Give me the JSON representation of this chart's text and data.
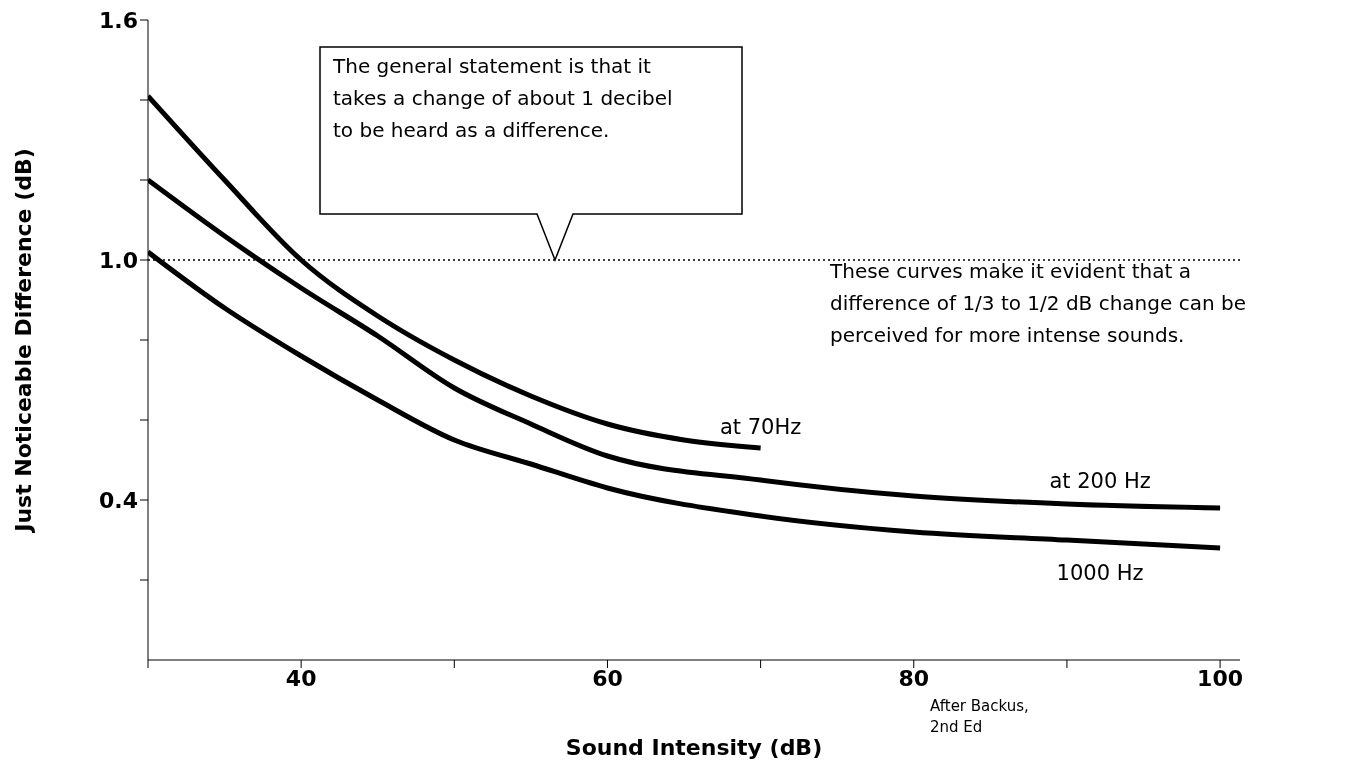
{
  "chart_data": {
    "type": "line",
    "xlabel": "Sound Intensity (dB)",
    "ylabel": "Just Noticeable Difference (dB)",
    "xlim": [
      30,
      101.3
    ],
    "xticks": [
      {
        "value": 30,
        "label": null
      },
      40,
      {
        "value": 50,
        "label": null
      },
      60,
      {
        "value": 70,
        "label": null
      },
      80,
      {
        "value": 90,
        "label": null
      },
      100
    ],
    "ylim": [
      0,
      1.6
    ],
    "yticks": [
      {
        "value": 0.2,
        "label": null
      },
      0.4,
      {
        "value": 0.6,
        "label": null
      },
      {
        "value": 0.8,
        "label": null
      },
      {
        "value": 1,
        "label": "1.0"
      },
      {
        "value": 1.2,
        "label": null
      },
      {
        "value": 1.4,
        "label": null
      },
      1.6
    ],
    "series": [
      {
        "name": "at 70Hz",
        "color": "#000000",
        "x": [
          30,
          35,
          40,
          45,
          50,
          55,
          60,
          65,
          70
        ],
        "values": [
          1.41,
          1.2,
          1.0,
          0.86,
          0.75,
          0.66,
          0.59,
          0.55,
          0.53
        ]
      },
      {
        "name": "at 200 Hz",
        "color": "#000000",
        "x": [
          30,
          35,
          40,
          45,
          50,
          55,
          60,
          70,
          80,
          90,
          100
        ],
        "values": [
          1.2,
          1.06,
          0.93,
          0.81,
          0.68,
          0.59,
          0.51,
          0.45,
          0.41,
          0.39,
          0.38
        ]
      },
      {
        "name": "1000 Hz",
        "color": "#000000",
        "x": [
          30,
          35,
          40,
          45,
          50,
          55,
          60,
          70,
          80,
          90,
          100
        ],
        "values": [
          1.02,
          0.88,
          0.76,
          0.65,
          0.55,
          0.49,
          0.43,
          0.36,
          0.32,
          0.3,
          0.28
        ]
      }
    ],
    "ref_lines": [
      {
        "axis": "y",
        "value": 1.0,
        "line_style": "dotted",
        "color": "#000000"
      }
    ],
    "annotations": [
      "The general statement is that it takes a change of about 1 decibel to be heard as a difference.",
      "These curves make it evident that a difference of 1/3 to 1/2 dB change can be perceived for more intense sounds.",
      "After Backus, 2nd Ed"
    ],
    "grid": false,
    "legend": false,
    "marker": "none",
    "line_style": "solid"
  }
}
